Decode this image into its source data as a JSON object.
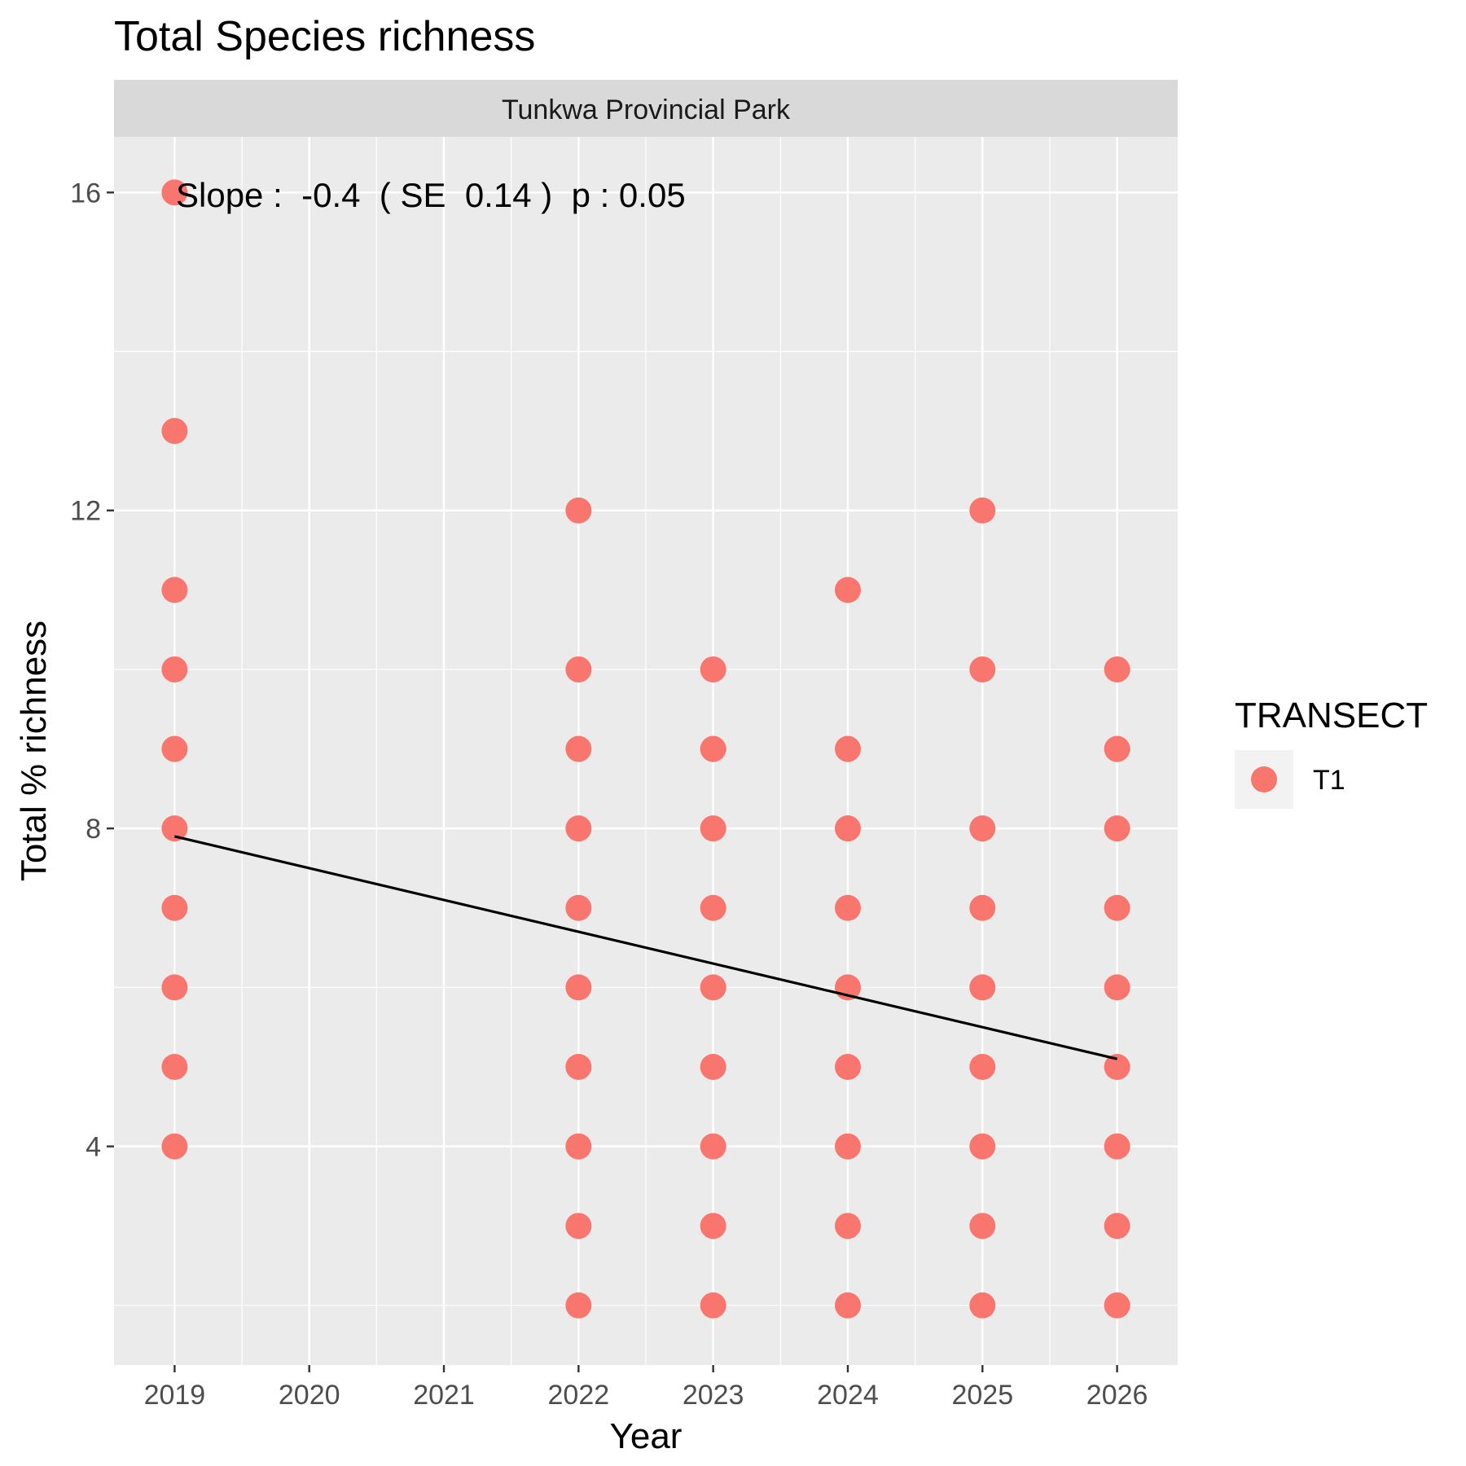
{
  "chart_data": {
    "type": "scatter",
    "title": "Total Species richness",
    "panel_label": "Tunkwa Provincial Park",
    "xlabel": "Year",
    "ylabel": "Total % richness",
    "x_ticks": [
      "2019",
      "2020",
      "2021",
      "2022",
      "2023",
      "2024",
      "2025",
      "2026"
    ],
    "y_ticks": [
      "4",
      "8",
      "12",
      "16"
    ],
    "xlim": [
      2018.55,
      2026.45
    ],
    "ylim": [
      1.25,
      16.7
    ],
    "grid": true,
    "legend": {
      "title": "TRANSECT",
      "position": "right",
      "entries": [
        "T1"
      ]
    },
    "series": [
      {
        "name": "T1",
        "color": "#F8766D",
        "points": [
          {
            "x": 2019,
            "y": 16
          },
          {
            "x": 2019,
            "y": 13
          },
          {
            "x": 2019,
            "y": 11
          },
          {
            "x": 2019,
            "y": 10
          },
          {
            "x": 2019,
            "y": 9
          },
          {
            "x": 2019,
            "y": 8
          },
          {
            "x": 2019,
            "y": 7
          },
          {
            "x": 2019,
            "y": 6
          },
          {
            "x": 2019,
            "y": 5
          },
          {
            "x": 2019,
            "y": 4
          },
          {
            "x": 2022,
            "y": 12
          },
          {
            "x": 2022,
            "y": 10
          },
          {
            "x": 2022,
            "y": 9
          },
          {
            "x": 2022,
            "y": 8
          },
          {
            "x": 2022,
            "y": 7
          },
          {
            "x": 2022,
            "y": 6
          },
          {
            "x": 2022,
            "y": 5
          },
          {
            "x": 2022,
            "y": 4
          },
          {
            "x": 2022,
            "y": 3
          },
          {
            "x": 2022,
            "y": 2
          },
          {
            "x": 2023,
            "y": 10
          },
          {
            "x": 2023,
            "y": 9
          },
          {
            "x": 2023,
            "y": 8
          },
          {
            "x": 2023,
            "y": 7
          },
          {
            "x": 2023,
            "y": 6
          },
          {
            "x": 2023,
            "y": 5
          },
          {
            "x": 2023,
            "y": 4
          },
          {
            "x": 2023,
            "y": 3
          },
          {
            "x": 2023,
            "y": 2
          },
          {
            "x": 2024,
            "y": 11
          },
          {
            "x": 2024,
            "y": 9
          },
          {
            "x": 2024,
            "y": 8
          },
          {
            "x": 2024,
            "y": 7
          },
          {
            "x": 2024,
            "y": 6
          },
          {
            "x": 2024,
            "y": 5
          },
          {
            "x": 2024,
            "y": 4
          },
          {
            "x": 2024,
            "y": 3
          },
          {
            "x": 2024,
            "y": 2
          },
          {
            "x": 2025,
            "y": 12
          },
          {
            "x": 2025,
            "y": 10
          },
          {
            "x": 2025,
            "y": 8
          },
          {
            "x": 2025,
            "y": 7
          },
          {
            "x": 2025,
            "y": 6
          },
          {
            "x": 2025,
            "y": 5
          },
          {
            "x": 2025,
            "y": 4
          },
          {
            "x": 2025,
            "y": 3
          },
          {
            "x": 2025,
            "y": 2
          },
          {
            "x": 2026,
            "y": 10
          },
          {
            "x": 2026,
            "y": 9
          },
          {
            "x": 2026,
            "y": 8
          },
          {
            "x": 2026,
            "y": 7
          },
          {
            "x": 2026,
            "y": 6
          },
          {
            "x": 2026,
            "y": 5
          },
          {
            "x": 2026,
            "y": 4
          },
          {
            "x": 2026,
            "y": 3
          },
          {
            "x": 2026,
            "y": 2
          }
        ]
      }
    ],
    "trend_line": {
      "x": [
        2019,
        2026
      ],
      "y": [
        7.9,
        5.1
      ],
      "color": "#000000"
    },
    "annotation": "Slope :  -0.4  ( SE  0.14 )  p : 0.05"
  }
}
